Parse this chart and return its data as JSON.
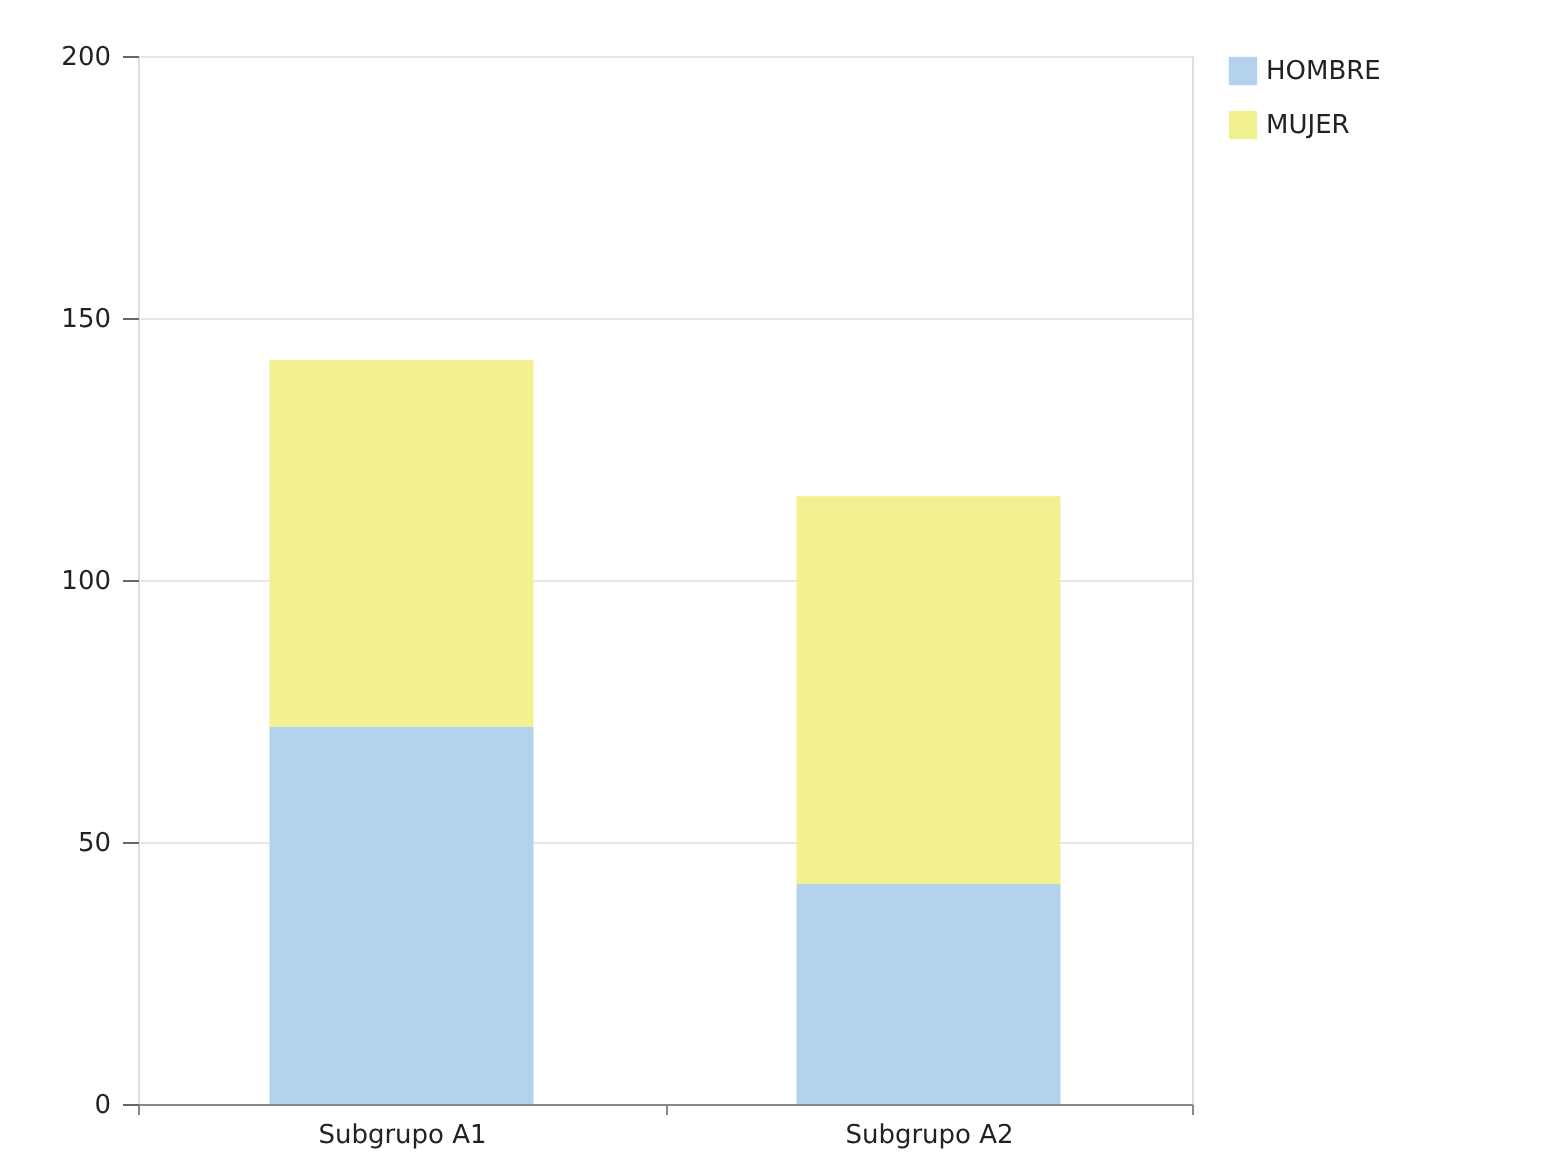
{
  "chart_data": {
    "type": "bar",
    "stacked": true,
    "categories": [
      "Subgrupo A1",
      "Subgrupo A2"
    ],
    "series": [
      {
        "name": "HOMBRE",
        "color": "#b4d1ee",
        "values": [
          72,
          42
        ]
      },
      {
        "name": "MUJER",
        "color": "#f1f190",
        "values": [
          70,
          74
        ]
      }
    ],
    "ylim": [
      0,
      200
    ],
    "yticks": [
      0,
      50,
      100,
      150,
      200
    ],
    "grid": "y",
    "legend": "right"
  }
}
